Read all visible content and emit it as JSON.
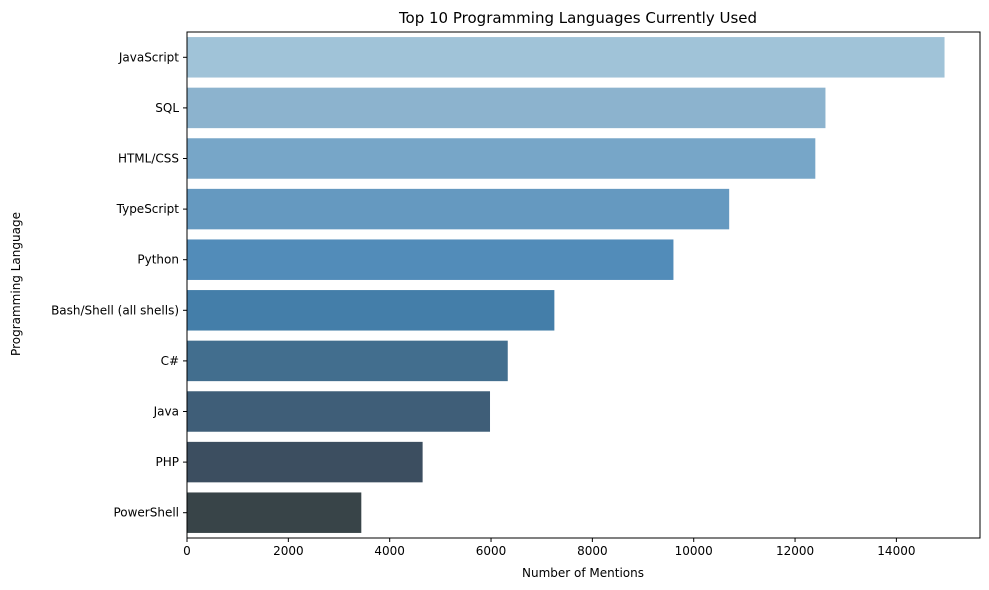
{
  "chart_data": {
    "type": "bar",
    "orientation": "horizontal",
    "title": "Top 10 Programming Languages Currently Used",
    "xlabel": "Number of Mentions",
    "ylabel": "Programming Language",
    "xlim": [
      0,
      15650
    ],
    "xticks": [
      0,
      2000,
      4000,
      6000,
      8000,
      10000,
      12000,
      14000
    ],
    "categories": [
      "JavaScript",
      "SQL",
      "HTML/CSS",
      "TypeScript",
      "Python",
      "Bash/Shell (all shells)",
      "C#",
      "Java",
      "PHP",
      "PowerShell"
    ],
    "values": [
      14950,
      12600,
      12400,
      10700,
      9600,
      7250,
      6330,
      5980,
      4650,
      3440
    ],
    "colors": [
      "#a0c3d8",
      "#8cb3ce",
      "#77a6c8",
      "#6599c0",
      "#528cb9",
      "#447ea9",
      "#426e8e",
      "#3f5e78",
      "#3c4e60",
      "#384448"
    ],
    "grid": false
  }
}
